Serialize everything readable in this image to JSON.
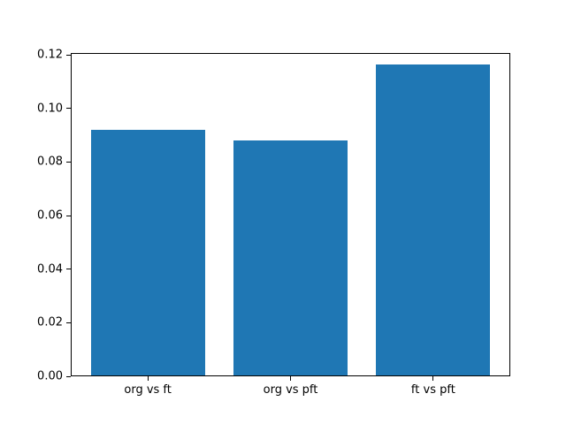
{
  "figure": {
    "background": "#ffffff",
    "plot_background": "#ffffff",
    "spine_color": "#000000",
    "tick_color": "#000000",
    "text_color": "#000000"
  },
  "chart_data": {
    "type": "bar",
    "title": "",
    "xlabel": "",
    "ylabel": "",
    "categories": [
      "org vs ft",
      "org vs pft",
      "ft vs pft"
    ],
    "values": [
      0.0917,
      0.0878,
      0.1161
    ],
    "bar_color": "#1f77b4",
    "bar_width": 0.8,
    "xlim": [
      -0.54,
      2.54
    ],
    "ylim": [
      0,
      0.1207
    ],
    "yticks": [
      0.0,
      0.02,
      0.04,
      0.06,
      0.08,
      0.1,
      0.12
    ],
    "ytick_labels": [
      "0.00",
      "0.02",
      "0.04",
      "0.06",
      "0.08",
      "0.10",
      "0.12"
    ],
    "grid": false,
    "legend": null
  }
}
